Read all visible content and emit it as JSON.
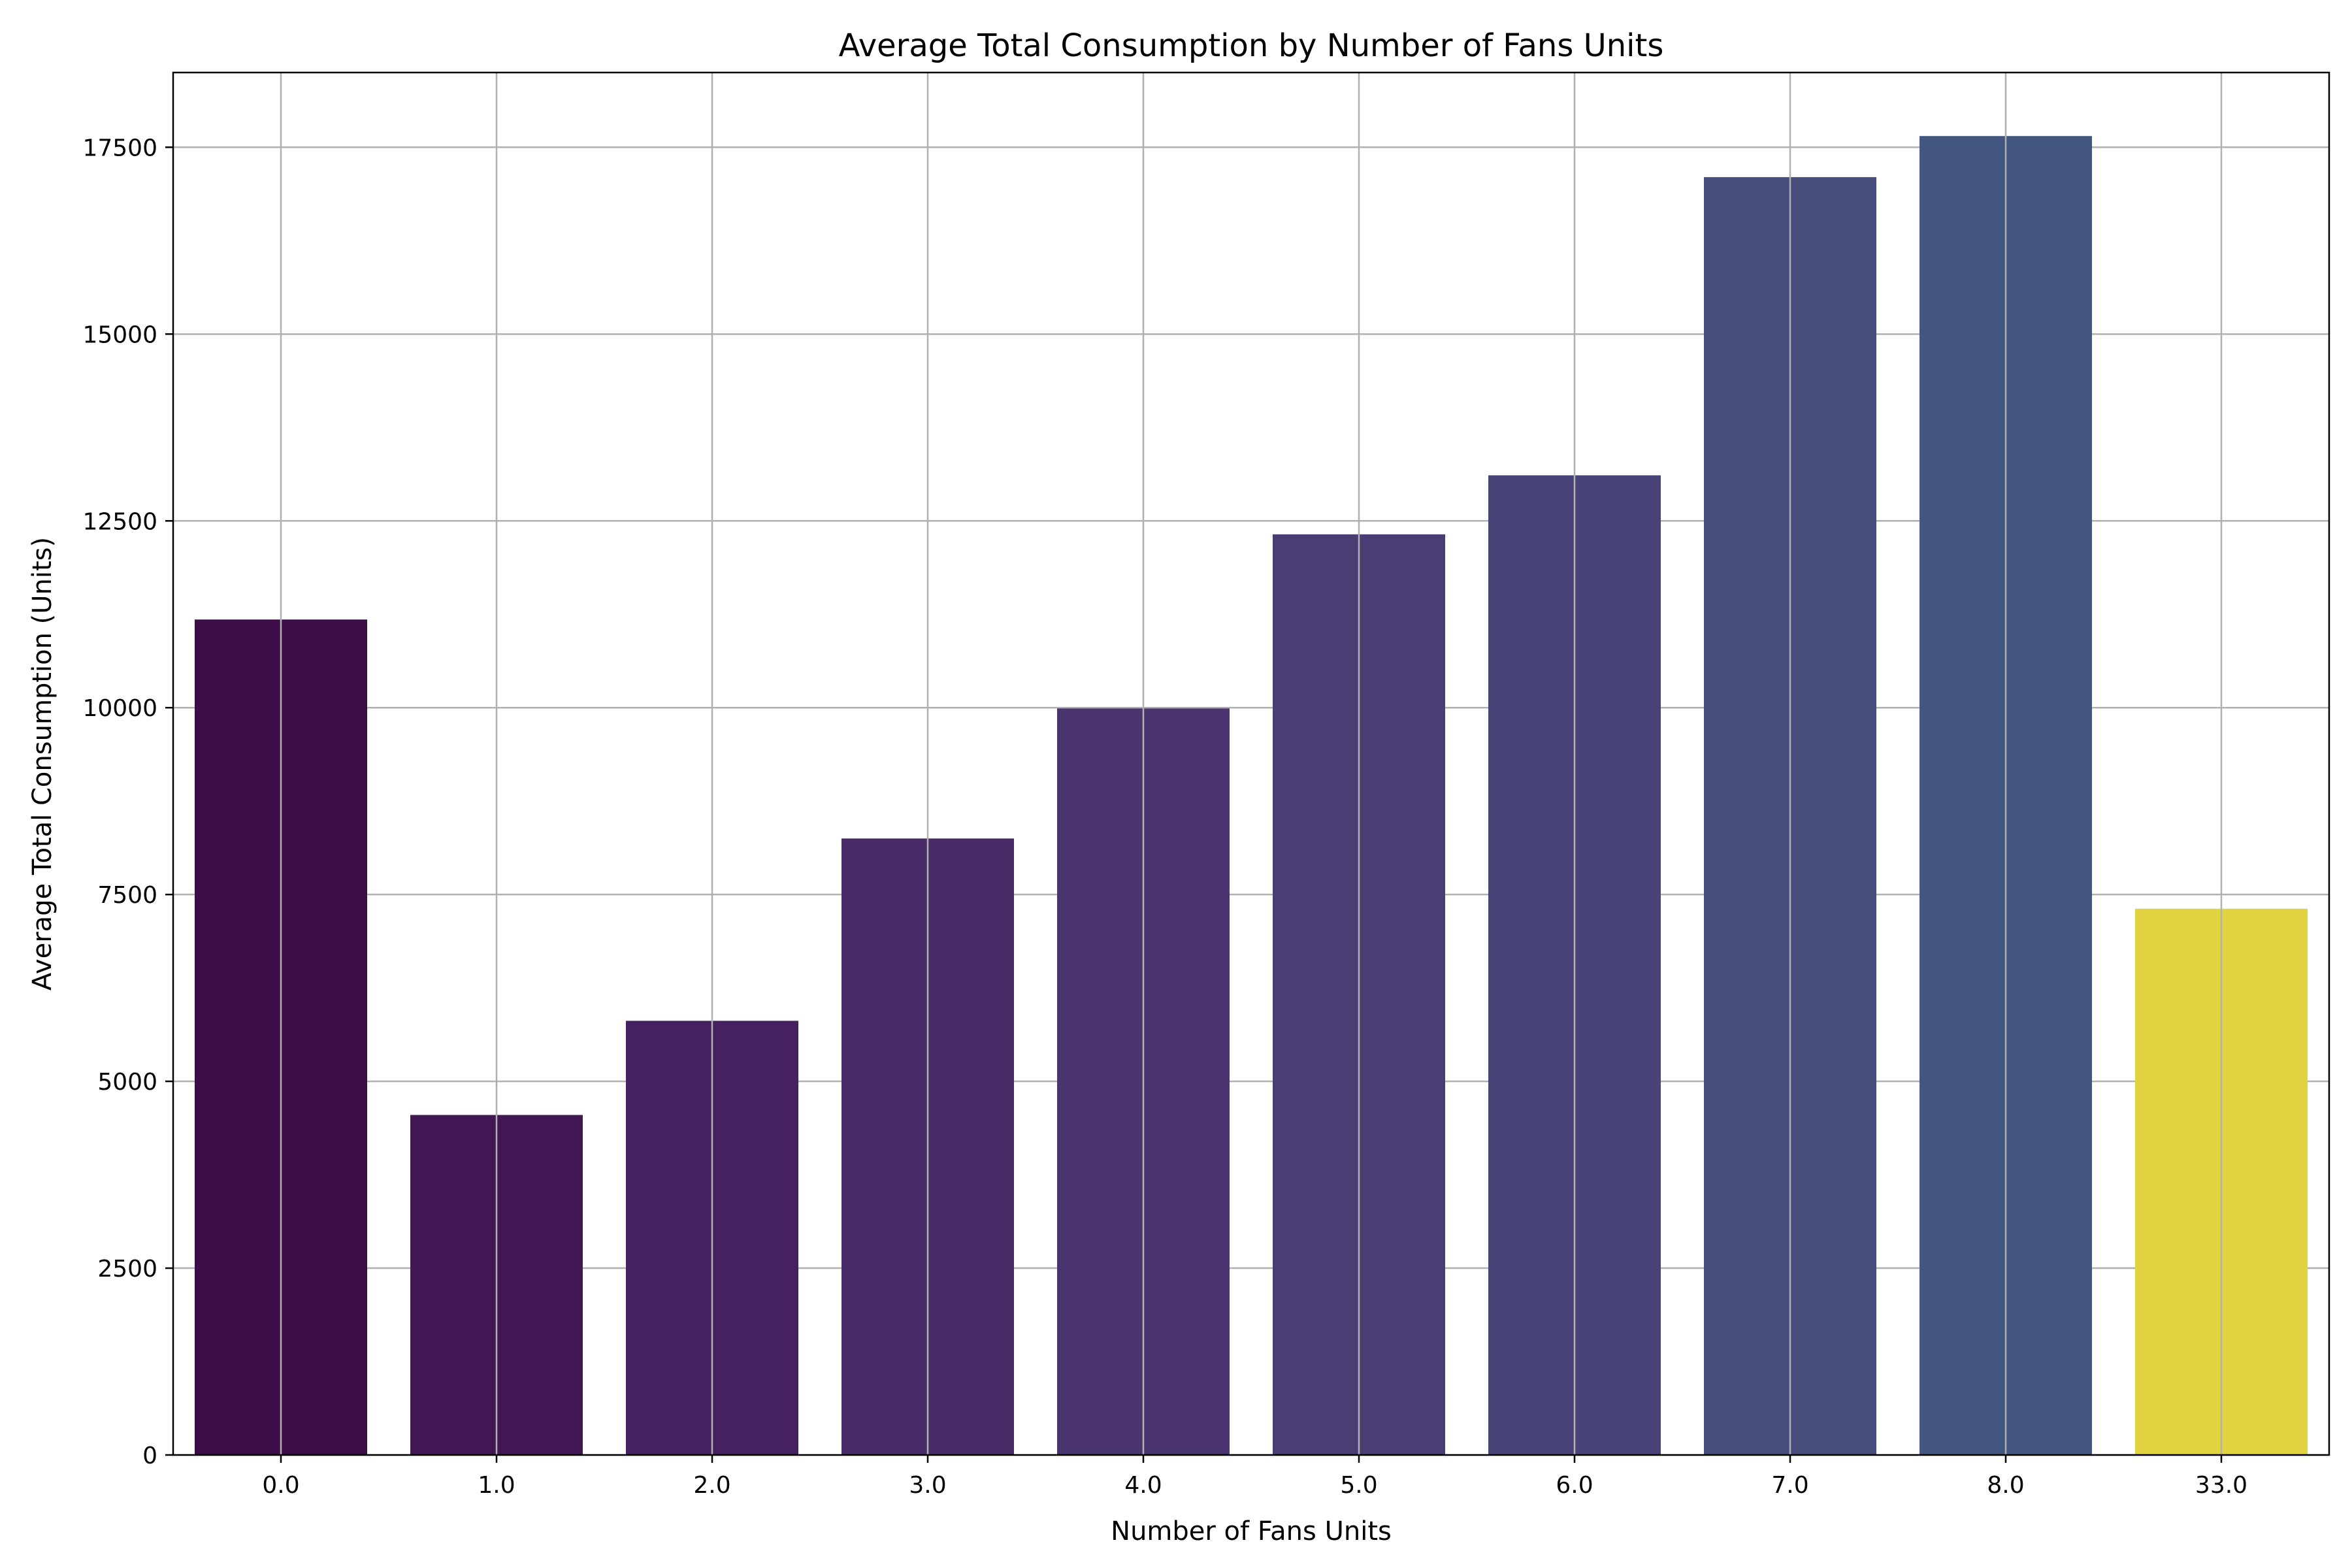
{
  "chart_data": {
    "type": "bar",
    "title": "Average Total Consumption by Number of Fans Units",
    "xlabel": "Number of Fans Units",
    "ylabel": "Average Total Consumption (Units)",
    "categories": [
      "0.0",
      "1.0",
      "2.0",
      "3.0",
      "4.0",
      "5.0",
      "6.0",
      "7.0",
      "8.0",
      "33.0"
    ],
    "values": [
      11180,
      4550,
      5810,
      8250,
      9990,
      12320,
      13110,
      17100,
      17650,
      7310
    ],
    "bar_colors": [
      "#3d0d48",
      "#421753",
      "#45215f",
      "#482c67",
      "#49346f",
      "#493d73",
      "#484477",
      "#484e7c",
      "#435680",
      "#e0d33f"
    ],
    "ylim": [
      0,
      18500
    ],
    "yticks": [
      0,
      2500,
      5000,
      7500,
      10000,
      12500,
      15000,
      17500
    ],
    "ytick_labels": [
      "0",
      "2500",
      "5000",
      "7500",
      "10000",
      "12500",
      "15000",
      "17500"
    ],
    "grid": true,
    "grid_color": "#b0b0b0",
    "legend": "none"
  }
}
